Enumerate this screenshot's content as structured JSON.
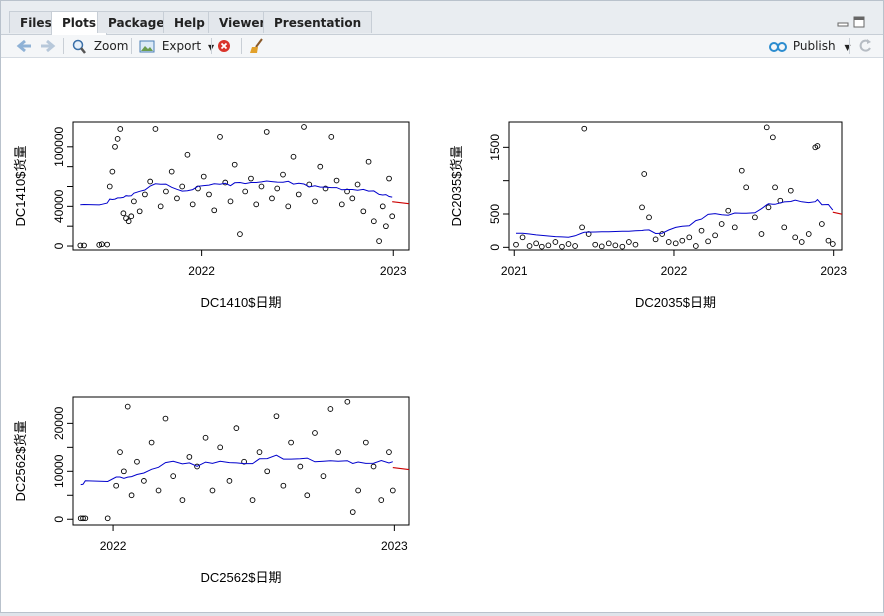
{
  "tabs": [
    {
      "label": "Files",
      "active": false
    },
    {
      "label": "Plots",
      "active": true
    },
    {
      "label": "Packages",
      "active": false
    },
    {
      "label": "Help",
      "active": false
    },
    {
      "label": "Viewer",
      "active": false
    },
    {
      "label": "Presentation",
      "active": false
    }
  ],
  "toolbar": {
    "zoom_label": "Zoom",
    "export_label": "Export",
    "publish_label": "Publish",
    "icons": [
      "back-arrow-icon",
      "forward-arrow-icon",
      "zoom-magnifier-icon",
      "export-image-icon",
      "remove-plot-icon",
      "broom-icon",
      "publish-icon",
      "refresh-icon"
    ]
  },
  "colors": {
    "points": "#000000",
    "smooth_line": "#0000cc",
    "trend_line": "#cc0000"
  },
  "chart_data": [
    {
      "type": "scatter",
      "xlabel": "DC1410$日期",
      "ylabel": "DC1410$货量",
      "x_ticks": [
        "2022",
        "2023"
      ],
      "y_ticks": [
        "0",
        "40000",
        "100000"
      ],
      "y_ticks_extra": [
        "20000",
        "60000",
        "80000"
      ],
      "x_range": [
        "2021-05-01",
        "2023-01-31"
      ],
      "ylim": [
        -4000,
        125000
      ],
      "points": [
        [
          "2021-05-15",
          600
        ],
        [
          "2021-05-22",
          600
        ],
        [
          "2021-06-20",
          1200
        ],
        [
          "2021-06-25",
          1800
        ],
        [
          "2021-07-05",
          1500
        ],
        [
          "2021-07-10",
          60000
        ],
        [
          "2021-07-15",
          75000
        ],
        [
          "2021-07-20",
          100000
        ],
        [
          "2021-07-25",
          108000
        ],
        [
          "2021-07-30",
          118000
        ],
        [
          "2021-08-05",
          33000
        ],
        [
          "2021-08-10",
          28000
        ],
        [
          "2021-08-15",
          25000
        ],
        [
          "2021-08-20",
          30000
        ],
        [
          "2021-08-25",
          45000
        ],
        [
          "2021-09-05",
          35000
        ],
        [
          "2021-09-15",
          52000
        ],
        [
          "2021-09-25",
          65000
        ],
        [
          "2021-10-05",
          118000
        ],
        [
          "2021-10-15",
          40000
        ],
        [
          "2021-10-25",
          55000
        ],
        [
          "2021-11-05",
          75000
        ],
        [
          "2021-11-15",
          48000
        ],
        [
          "2021-11-25",
          60000
        ],
        [
          "2021-12-05",
          92000
        ],
        [
          "2021-12-15",
          42000
        ],
        [
          "2021-12-25",
          58000
        ],
        [
          "2022-01-05",
          70000
        ],
        [
          "2022-01-15",
          52000
        ],
        [
          "2022-01-25",
          36000
        ],
        [
          "2022-02-05",
          110000
        ],
        [
          "2022-02-15",
          64000
        ],
        [
          "2022-02-25",
          45000
        ],
        [
          "2022-03-05",
          82000
        ],
        [
          "2022-03-15",
          12000
        ],
        [
          "2022-03-25",
          55000
        ],
        [
          "2022-04-05",
          68000
        ],
        [
          "2022-04-15",
          42000
        ],
        [
          "2022-04-25",
          60000
        ],
        [
          "2022-05-05",
          115000
        ],
        [
          "2022-05-15",
          48000
        ],
        [
          "2022-05-25",
          58000
        ],
        [
          "2022-06-05",
          72000
        ],
        [
          "2022-06-15",
          40000
        ],
        [
          "2022-06-25",
          90000
        ],
        [
          "2022-07-05",
          52000
        ],
        [
          "2022-07-15",
          120000
        ],
        [
          "2022-07-25",
          62000
        ],
        [
          "2022-08-05",
          45000
        ],
        [
          "2022-08-15",
          80000
        ],
        [
          "2022-08-25",
          58000
        ],
        [
          "2022-09-05",
          110000
        ],
        [
          "2022-09-15",
          66000
        ],
        [
          "2022-09-25",
          42000
        ],
        [
          "2022-10-05",
          55000
        ],
        [
          "2022-10-15",
          48000
        ],
        [
          "2022-10-25",
          62000
        ],
        [
          "2022-11-05",
          35000
        ],
        [
          "2022-11-15",
          85000
        ],
        [
          "2022-11-25",
          25000
        ],
        [
          "2022-12-05",
          5000
        ],
        [
          "2022-12-12",
          40000
        ],
        [
          "2022-12-18",
          20000
        ],
        [
          "2022-12-24",
          68000
        ],
        [
          "2022-12-30",
          30000
        ]
      ]
    },
    {
      "type": "scatter",
      "xlabel": "DC2035$日期",
      "ylabel": "DC2035$货量",
      "x_ticks": [
        "2021",
        "2022",
        "2023"
      ],
      "y_ticks": [
        "0",
        "500",
        "1500"
      ],
      "y_ticks_extra": [
        "1000"
      ],
      "x_range": [
        "2020-12-20",
        "2023-01-20"
      ],
      "ylim": [
        -40,
        1880
      ],
      "points": [
        [
          "2021-01-05",
          40
        ],
        [
          "2021-01-20",
          150
        ],
        [
          "2021-02-05",
          20
        ],
        [
          "2021-02-20",
          60
        ],
        [
          "2021-03-05",
          10
        ],
        [
          "2021-03-20",
          30
        ],
        [
          "2021-04-05",
          80
        ],
        [
          "2021-04-20",
          10
        ],
        [
          "2021-05-05",
          50
        ],
        [
          "2021-05-20",
          20
        ],
        [
          "2021-06-10",
          1780
        ],
        [
          "2021-06-05",
          300
        ],
        [
          "2021-06-20",
          200
        ],
        [
          "2021-07-05",
          40
        ],
        [
          "2021-07-20",
          15
        ],
        [
          "2021-08-05",
          60
        ],
        [
          "2021-08-20",
          30
        ],
        [
          "2021-09-05",
          10
        ],
        [
          "2021-09-20",
          80
        ],
        [
          "2021-10-05",
          40
        ],
        [
          "2021-10-20",
          600
        ],
        [
          "2021-10-25",
          1100
        ],
        [
          "2021-11-05",
          450
        ],
        [
          "2021-11-20",
          120
        ],
        [
          "2021-12-05",
          200
        ],
        [
          "2021-12-20",
          80
        ],
        [
          "2022-01-05",
          60
        ],
        [
          "2022-01-20",
          100
        ],
        [
          "2022-02-05",
          150
        ],
        [
          "2022-02-20",
          20
        ],
        [
          "2022-03-05",
          250
        ],
        [
          "2022-03-20",
          90
        ],
        [
          "2022-04-05",
          180
        ],
        [
          "2022-04-20",
          350
        ],
        [
          "2022-05-05",
          550
        ],
        [
          "2022-05-20",
          300
        ],
        [
          "2022-06-05",
          1150
        ],
        [
          "2022-06-15",
          900
        ],
        [
          "2022-07-05",
          450
        ],
        [
          "2022-07-20",
          200
        ],
        [
          "2022-08-01",
          1800
        ],
        [
          "2022-08-05",
          600
        ],
        [
          "2022-08-15",
          1650
        ],
        [
          "2022-08-20",
          900
        ],
        [
          "2022-09-01",
          700
        ],
        [
          "2022-09-10",
          300
        ],
        [
          "2022-09-25",
          850
        ],
        [
          "2022-10-05",
          150
        ],
        [
          "2022-10-20",
          80
        ],
        [
          "2022-11-05",
          200
        ],
        [
          "2022-11-20",
          1500
        ],
        [
          "2022-11-25",
          1520
        ],
        [
          "2022-12-05",
          350
        ],
        [
          "2022-12-20",
          100
        ],
        [
          "2022-12-30",
          50
        ]
      ]
    },
    {
      "type": "scatter",
      "xlabel": "DC2562$日期",
      "ylabel": "DC2562$货量",
      "x_ticks": [
        "2022",
        "2023"
      ],
      "y_ticks": [
        "0",
        "10000",
        "20000"
      ],
      "y_ticks_extra": [
        "5000",
        "15000"
      ],
      "x_range": [
        "2021-11-10",
        "2023-01-20"
      ],
      "ylim": [
        -1200,
        25500
      ],
      "points": [
        [
          "2021-11-20",
          200
        ],
        [
          "2021-11-23",
          200
        ],
        [
          "2021-11-26",
          200
        ],
        [
          "2021-12-25",
          200
        ],
        [
          "2022-01-05",
          7000
        ],
        [
          "2022-01-10",
          14000
        ],
        [
          "2022-01-15",
          10000
        ],
        [
          "2022-01-20",
          23500
        ],
        [
          "2022-01-25",
          5000
        ],
        [
          "2022-02-01",
          12000
        ],
        [
          "2022-02-10",
          8000
        ],
        [
          "2022-02-20",
          16000
        ],
        [
          "2022-03-01",
          6000
        ],
        [
          "2022-03-10",
          21000
        ],
        [
          "2022-03-20",
          9000
        ],
        [
          "2022-04-01",
          4000
        ],
        [
          "2022-04-10",
          13000
        ],
        [
          "2022-04-20",
          11000
        ],
        [
          "2022-05-01",
          17000
        ],
        [
          "2022-05-10",
          6000
        ],
        [
          "2022-05-20",
          15000
        ],
        [
          "2022-06-01",
          8000
        ],
        [
          "2022-06-10",
          19000
        ],
        [
          "2022-06-20",
          12000
        ],
        [
          "2022-07-01",
          4000
        ],
        [
          "2022-07-10",
          14000
        ],
        [
          "2022-07-20",
          10000
        ],
        [
          "2022-08-01",
          21500
        ],
        [
          "2022-08-10",
          7000
        ],
        [
          "2022-08-20",
          16000
        ],
        [
          "2022-09-01",
          11000
        ],
        [
          "2022-09-10",
          5000
        ],
        [
          "2022-09-20",
          18000
        ],
        [
          "2022-10-01",
          9000
        ],
        [
          "2022-10-10",
          23000
        ],
        [
          "2022-10-20",
          14000
        ],
        [
          "2022-11-01",
          24500
        ],
        [
          "2022-11-08",
          1500
        ],
        [
          "2022-11-15",
          6000
        ],
        [
          "2022-11-25",
          16000
        ],
        [
          "2022-12-05",
          11000
        ],
        [
          "2022-12-15",
          4000
        ],
        [
          "2022-12-25",
          14000
        ],
        [
          "2022-12-30",
          6000
        ]
      ]
    }
  ]
}
